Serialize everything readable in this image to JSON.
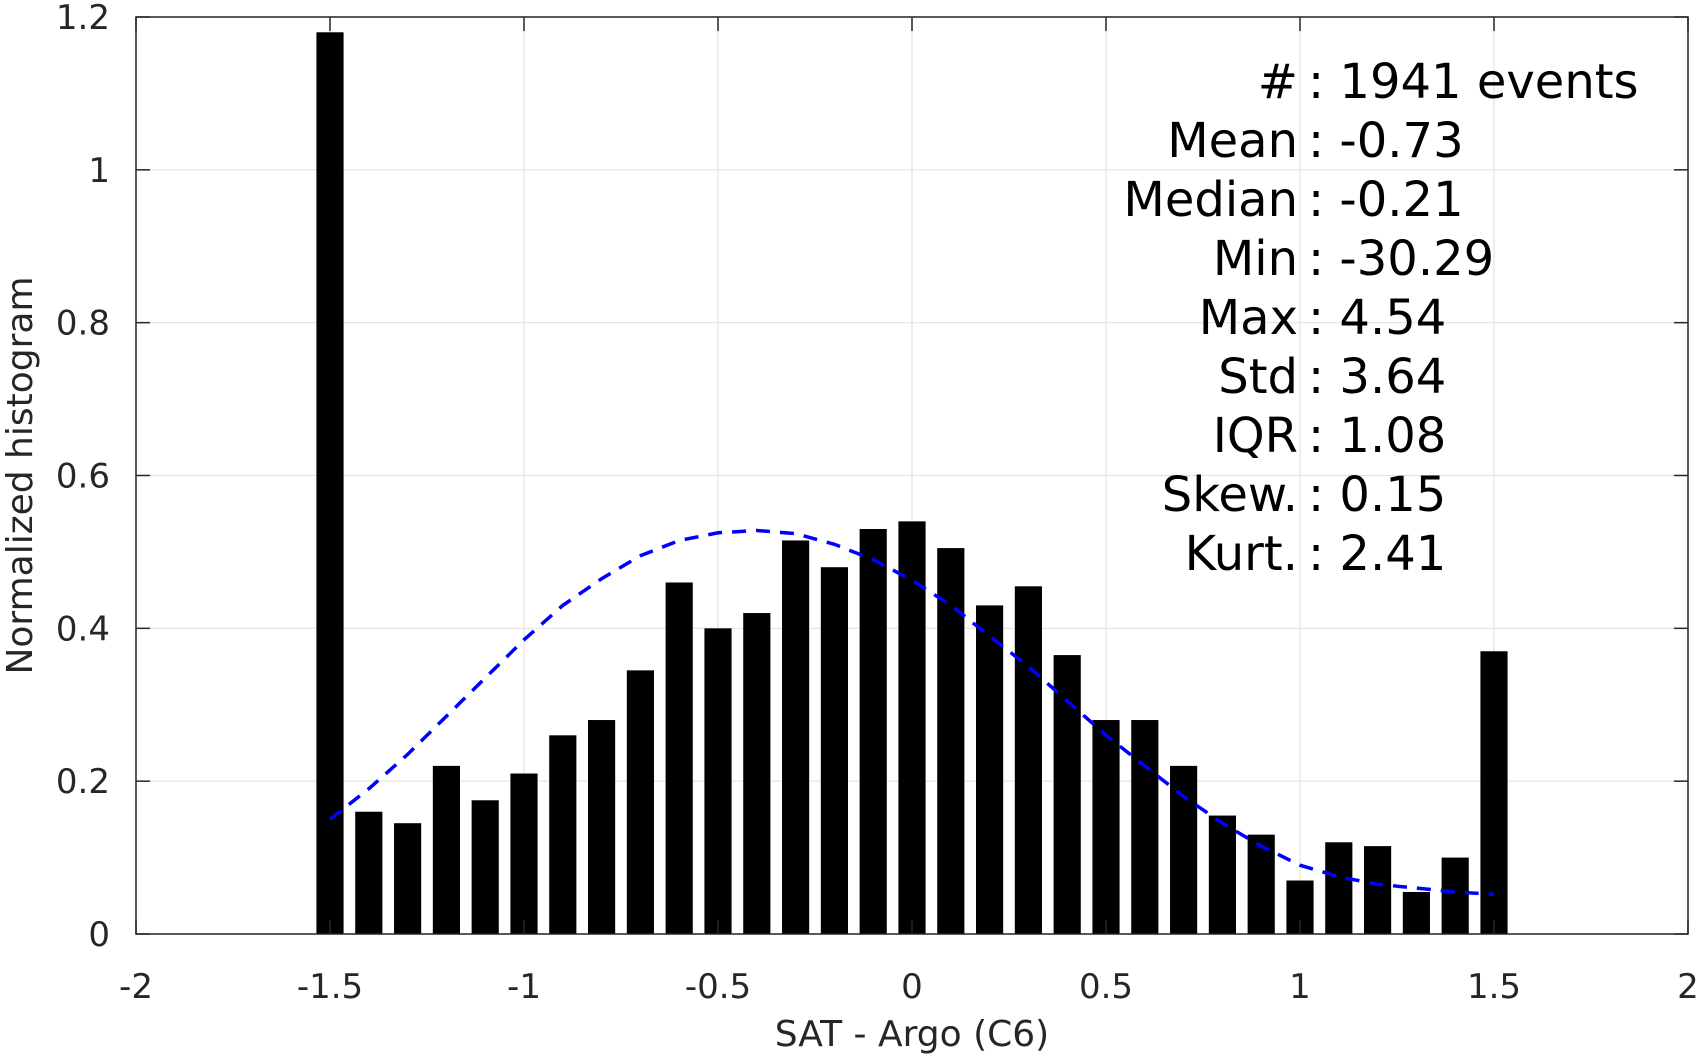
{
  "chart_data": {
    "type": "bar",
    "xlabel": "SAT - Argo (C6)",
    "ylabel": "Normalized histogram",
    "xlim": [
      -2,
      2
    ],
    "ylim": [
      0,
      1.2
    ],
    "xticks": [
      -2,
      -1.5,
      -1,
      -0.5,
      0,
      0.5,
      1,
      1.5,
      2
    ],
    "xtick_labels": [
      "-2",
      "-1.5",
      "-1",
      "-0.5",
      "0",
      "0.5",
      "1",
      "1.5",
      "2"
    ],
    "yticks": [
      0,
      0.2,
      0.4,
      0.6,
      0.8,
      1,
      1.2
    ],
    "ytick_labels": [
      "0",
      "0.2",
      "0.4",
      "0.6",
      "0.8",
      "1",
      "1.2"
    ],
    "grid": true,
    "bar_color": "#000000",
    "bar_width": 0.07,
    "bars": {
      "x": [
        -1.5,
        -1.4,
        -1.3,
        -1.2,
        -1.1,
        -1.0,
        -0.9,
        -0.8,
        -0.7,
        -0.6,
        -0.5,
        -0.4,
        -0.3,
        -0.2,
        -0.1,
        0.0,
        0.1,
        0.2,
        0.3,
        0.4,
        0.5,
        0.6,
        0.7,
        0.8,
        0.9,
        1.0,
        1.1,
        1.2,
        1.3,
        1.4,
        1.5
      ],
      "y": [
        1.18,
        0.16,
        0.145,
        0.22,
        0.175,
        0.21,
        0.26,
        0.28,
        0.345,
        0.46,
        0.4,
        0.42,
        0.515,
        0.48,
        0.53,
        0.54,
        0.505,
        0.43,
        0.455,
        0.365,
        0.28,
        0.28,
        0.22,
        0.155,
        0.13,
        0.07,
        0.12,
        0.115,
        0.055,
        0.1,
        0.37
      ]
    },
    "fit_curve": {
      "style": "dashed",
      "color": "#0000ff",
      "x": [
        -1.5,
        -1.4,
        -1.3,
        -1.2,
        -1.1,
        -1.0,
        -0.9,
        -0.8,
        -0.7,
        -0.6,
        -0.5,
        -0.4,
        -0.3,
        -0.2,
        -0.1,
        0.0,
        0.1,
        0.2,
        0.3,
        0.4,
        0.5,
        0.6,
        0.7,
        0.8,
        0.9,
        1.0,
        1.1,
        1.2,
        1.3,
        1.4,
        1.5
      ],
      "y": [
        0.15,
        0.19,
        0.235,
        0.285,
        0.335,
        0.385,
        0.43,
        0.465,
        0.495,
        0.515,
        0.525,
        0.528,
        0.524,
        0.51,
        0.49,
        0.463,
        0.43,
        0.39,
        0.35,
        0.305,
        0.26,
        0.22,
        0.18,
        0.145,
        0.115,
        0.09,
        0.075,
        0.065,
        0.06,
        0.055,
        0.052
      ]
    },
    "annotations": [
      {
        "label": "#",
        "value": ": 1941 events"
      },
      {
        "label": "Mean",
        "value": ": -0.73"
      },
      {
        "label": "Median",
        "value": ": -0.21"
      },
      {
        "label": "Min",
        "value": ": -30.29"
      },
      {
        "label": "Max",
        "value": ": 4.54"
      },
      {
        "label": "Std",
        "value": ": 3.64"
      },
      {
        "label": "IQR",
        "value": ": 1.08"
      },
      {
        "label": "Skew.",
        "value": ": 0.15"
      },
      {
        "label": "Kurt.",
        "value": ": 2.41"
      }
    ]
  }
}
